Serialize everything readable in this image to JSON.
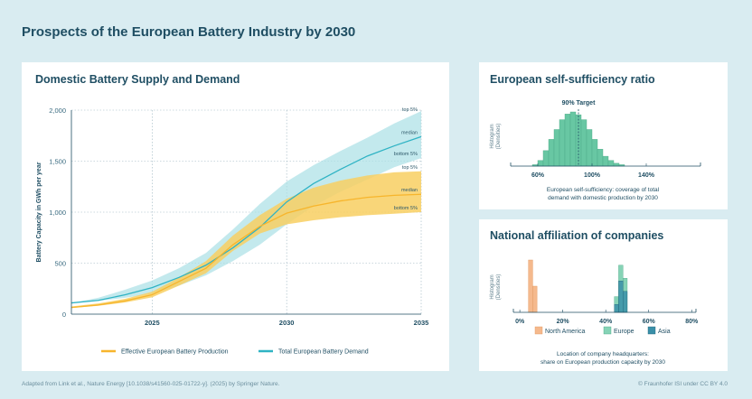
{
  "page": {
    "title": "Prospects of the European Battery Industry by 2030",
    "footer_left": "Adapted from Link et al., Nature Energy [10.1038/s41560-025-01722-y]. (2025) by Springer Nature.",
    "footer_right": "© Fraunhofer ISI under CC BY 4.0"
  },
  "colors": {
    "production": "#f7b52c",
    "production_band": "#f8cf62",
    "demand": "#2fb3c4",
    "demand_band": "#a9dfe6",
    "self_suff": "#68c7a3",
    "north_america": "#f5b98d",
    "europe": "#86d3b6",
    "asia": "#3a8fa8",
    "axis": "#1f4e63"
  },
  "chart_data": [
    {
      "type": "line",
      "title": "Domestic Battery Supply and Demand",
      "ylabel": "Battery Capacity in GWh per year",
      "xlabel": "",
      "xlim": [
        2022,
        2035
      ],
      "ylim": [
        0,
        2000
      ],
      "x_ticks": [
        2025,
        2030,
        2035
      ],
      "y_ticks": [
        0,
        500,
        1000,
        1500,
        2000
      ],
      "y_tick_labels": [
        "0",
        "500",
        "1,000",
        "1,500",
        "2,000"
      ],
      "grid": "dotted",
      "band_labels": [
        "top 5%",
        "median",
        "bottom 5%"
      ],
      "x": [
        2022,
        2023,
        2024,
        2025,
        2026,
        2027,
        2028,
        2029,
        2030,
        2031,
        2032,
        2033,
        2034,
        2035
      ],
      "series": [
        {
          "name": "Effective European Battery Production",
          "median": [
            65,
            90,
            130,
            190,
            320,
            450,
            680,
            860,
            990,
            1060,
            1110,
            1145,
            1165,
            1175
          ],
          "top5": [
            75,
            105,
            150,
            220,
            360,
            520,
            770,
            970,
            1130,
            1240,
            1310,
            1360,
            1390,
            1400
          ],
          "bottom5": [
            60,
            82,
            115,
            165,
            280,
            400,
            620,
            790,
            880,
            920,
            950,
            970,
            985,
            1000
          ]
        },
        {
          "name": "Total European Battery Demand",
          "median": [
            110,
            135,
            190,
            260,
            360,
            480,
            650,
            850,
            1100,
            1280,
            1420,
            1550,
            1650,
            1740
          ],
          "top5": [
            110,
            160,
            240,
            330,
            450,
            600,
            830,
            1080,
            1300,
            1460,
            1600,
            1730,
            1870,
            1990
          ],
          "bottom5": [
            110,
            130,
            160,
            200,
            280,
            380,
            520,
            680,
            880,
            1060,
            1200,
            1320,
            1440,
            1530
          ]
        }
      ],
      "legend": [
        "Effective European Battery Production",
        "Total European Battery Demand"
      ],
      "legend_position": "bottom"
    },
    {
      "type": "bar",
      "title": "European self-sufficiency ratio",
      "ylabel": "Histogram (Densities)",
      "x_ticks": [
        60,
        100,
        140
      ],
      "x_tick_labels": [
        "60%",
        "100%",
        "140%"
      ],
      "xlim": [
        40,
        180
      ],
      "bin_width": 4,
      "bins_start": [
        56,
        60,
        64,
        68,
        72,
        76,
        80,
        84,
        88,
        92,
        96,
        100,
        104,
        108,
        112,
        116,
        120
      ],
      "values": [
        2,
        8,
        22,
        38,
        52,
        66,
        74,
        77,
        73,
        66,
        52,
        38,
        24,
        14,
        8,
        4,
        2
      ],
      "target_label": "90% Target",
      "target_x": 90,
      "caption_line1": "European self-sufficiency: coverage of total",
      "caption_line2": "demand with domestic production by 2030"
    },
    {
      "type": "bar",
      "title": "National affiliation of companies",
      "ylabel": "Histogram (Densities)",
      "x_ticks": [
        0,
        20,
        40,
        60,
        80
      ],
      "x_tick_labels": [
        "0%",
        "20%",
        "40%",
        "60%",
        "80%"
      ],
      "xlim": [
        -3,
        82
      ],
      "bin_width": 2,
      "series": [
        {
          "name": "North America",
          "bins_start": [
            4,
            6
          ],
          "values": [
            100,
            50
          ]
        },
        {
          "name": "Europe",
          "bins_start": [
            44,
            46,
            48
          ],
          "values": [
            30,
            90,
            65
          ]
        },
        {
          "name": "Asia",
          "bins_start": [
            44,
            46,
            48
          ],
          "values": [
            15,
            60,
            40
          ]
        }
      ],
      "caption_line1": "Location of company headquarters:",
      "caption_line2": "share on European production capacity by 2030"
    }
  ]
}
